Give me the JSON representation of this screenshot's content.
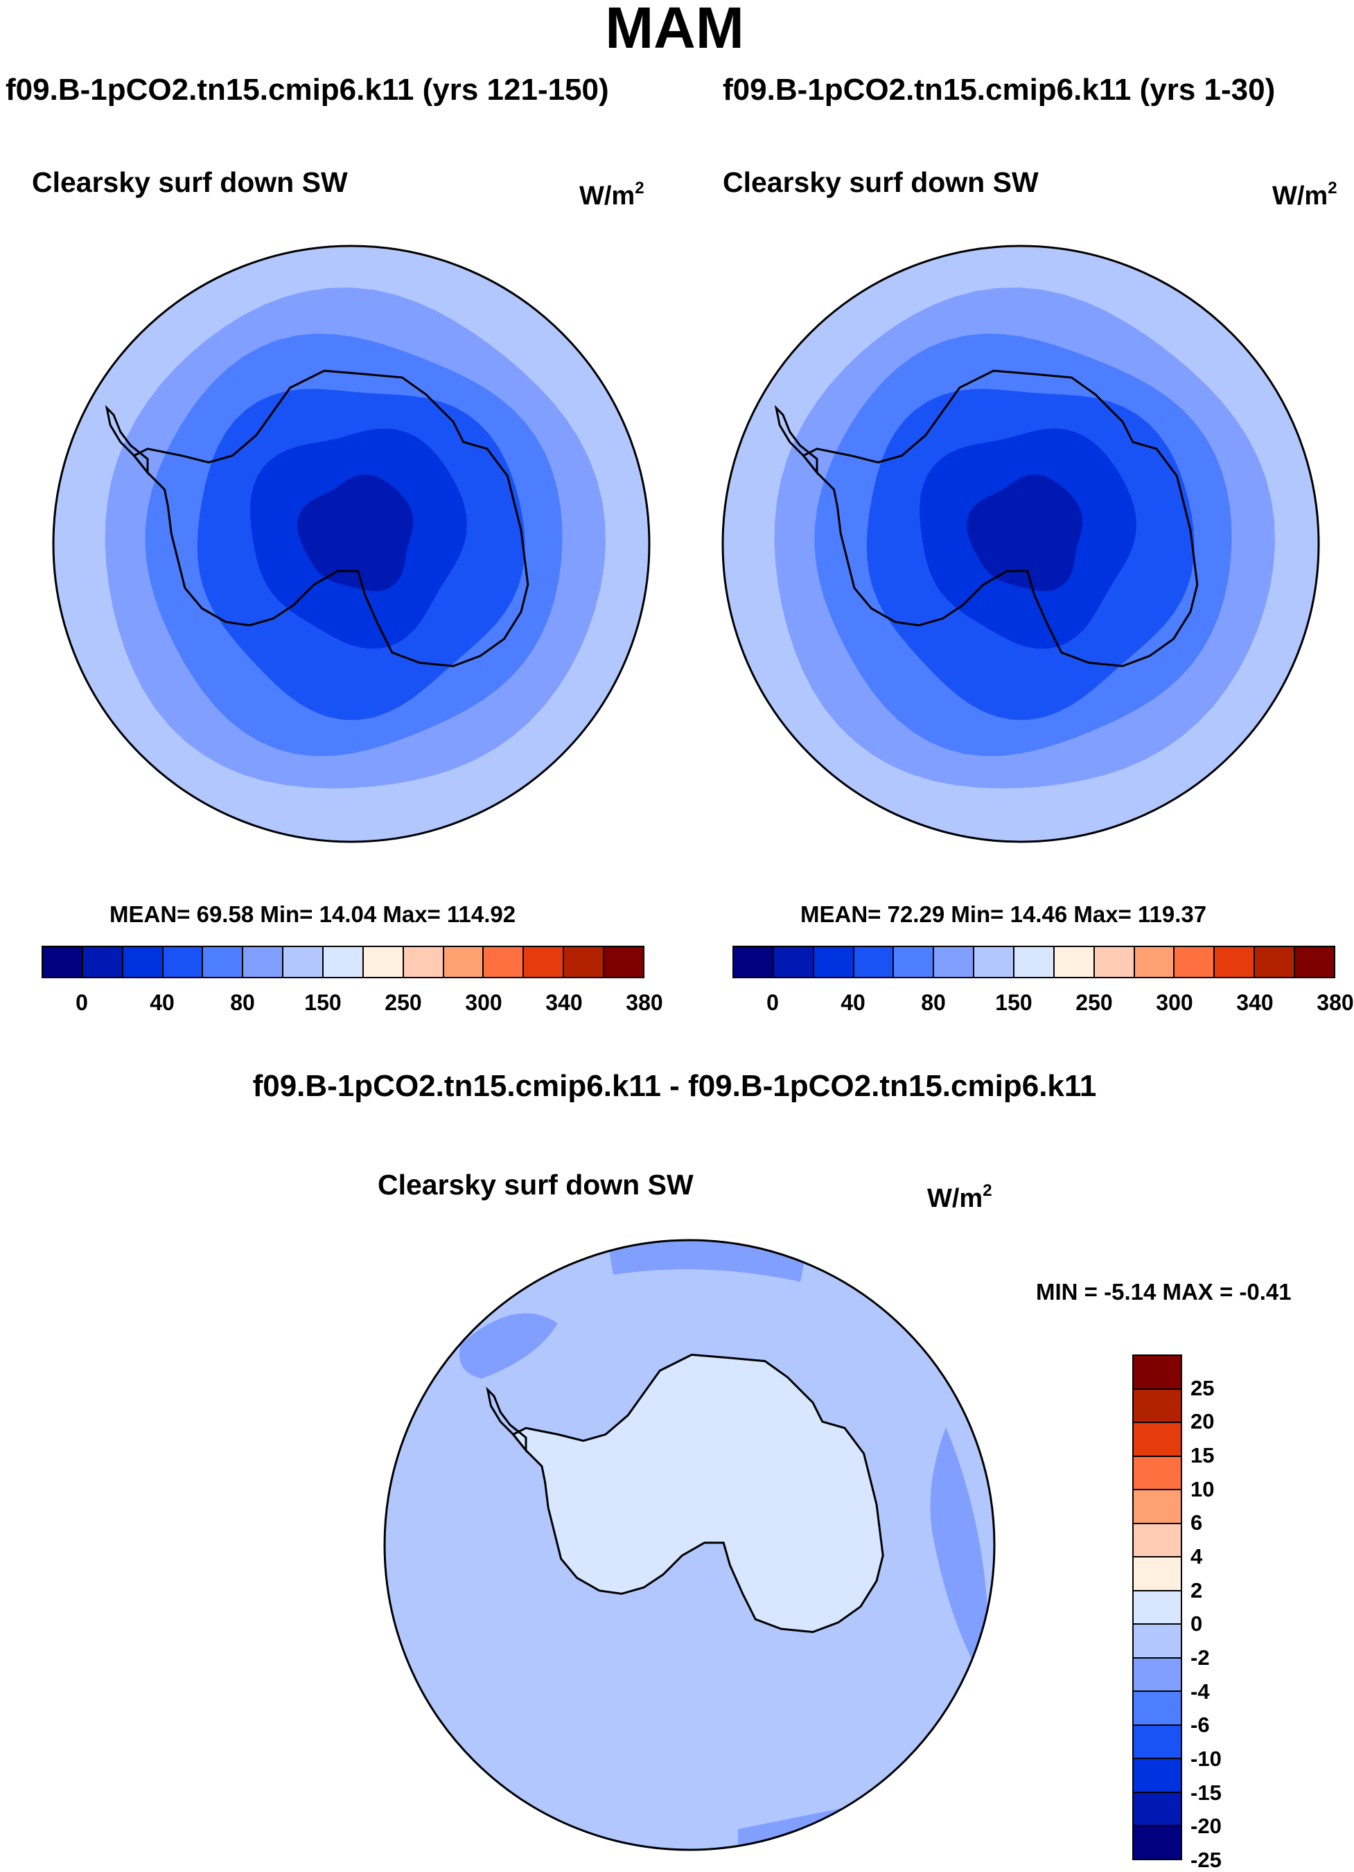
{
  "title": "MAM",
  "colors": {
    "abs": [
      "#000080",
      "#0019b3",
      "#0033e0",
      "#1a53f5",
      "#4d7eff",
      "#809fff",
      "#b3c7ff",
      "#d9e6ff",
      "#fff0e0",
      "#ffccb3",
      "#ffa073",
      "#ff7040",
      "#e63c0d",
      "#b32200",
      "#800000"
    ],
    "diff": [
      "#800000",
      "#b32200",
      "#e63c0d",
      "#ff7040",
      "#ffa073",
      "#ffccb3",
      "#fff0e0",
      "#d9e6ff",
      "#b3c7ff",
      "#809fff",
      "#4d7eff",
      "#1a53f5",
      "#0033e0",
      "#0019b3",
      "#000080"
    ]
  },
  "left_panel": {
    "case_title": "f09.B-1pCO2.tn15.cmip6.k11 (yrs 121-150)",
    "label": "Clearsky surf down SW",
    "units": "W/m",
    "units_sup": "2",
    "stats": "MEAN=  69.58  Min=  14.04  Max= 114.92",
    "colorbar_labels": [
      "0",
      "40",
      "80",
      "150",
      "250",
      "300",
      "340",
      "380"
    ]
  },
  "right_panel": {
    "case_title": "f09.B-1pCO2.tn15.cmip6.k11 (yrs 1-30)",
    "label": "Clearsky surf down SW",
    "units": "W/m",
    "units_sup": "2",
    "stats": "MEAN=  72.29  Min=  14.46  Max= 119.37",
    "colorbar_labels": [
      "0",
      "40",
      "80",
      "150",
      "250",
      "300",
      "340",
      "380"
    ]
  },
  "diff_panel": {
    "title": "f09.B-1pCO2.tn15.cmip6.k11 - f09.B-1pCO2.tn15.cmip6.k11",
    "label": "Clearsky surf down SW",
    "units": "W/m",
    "units_sup": "2",
    "stats": "MIN =  -5.14 MAX =  -0.41",
    "colorbar_labels": [
      "25",
      "20",
      "15",
      "10",
      "6",
      "4",
      "2",
      "0",
      "-2",
      "-4",
      "-6",
      "-10",
      "-15",
      "-20",
      "-25"
    ]
  }
}
